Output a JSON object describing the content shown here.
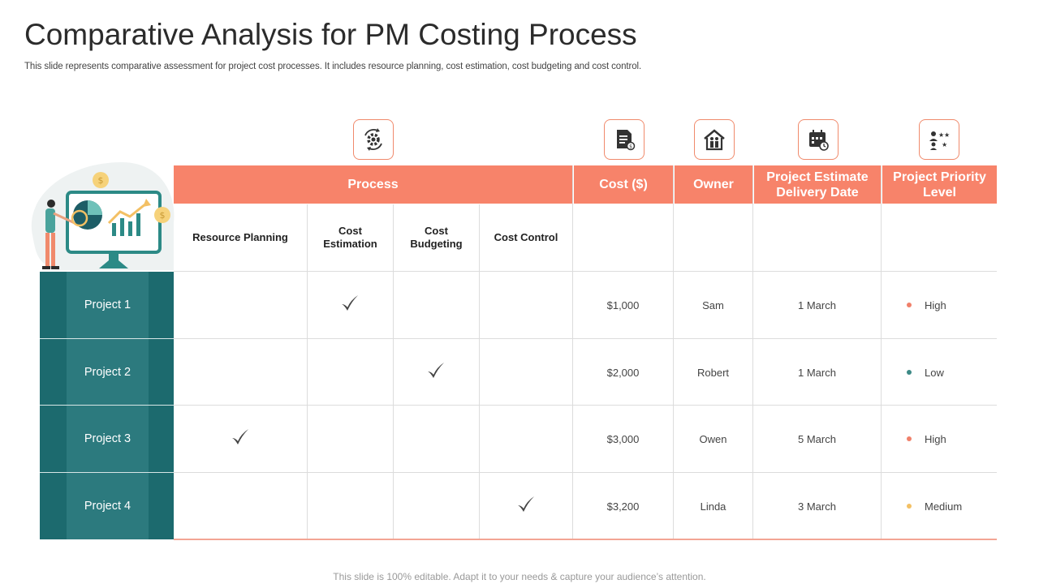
{
  "title": "Comparative Analysis for PM Costing Process",
  "subtitle": "This slide represents comparative assessment for project cost processes. It includes resource planning, cost estimation, cost budgeting and cost control.",
  "footer": "This slide is 100% editable. Adapt it to your needs & capture your audience’s attention.",
  "headers": {
    "process": "Process",
    "cost": "Cost ($)",
    "owner": "Owner",
    "delivery_line1": "Project Estimate",
    "delivery_line2": "Delivery Date",
    "priority_line1": "Project Priority",
    "priority_line2": "Level"
  },
  "process_columns": {
    "resource_planning": "Resource Planning",
    "cost_estimation_line1": "Cost",
    "cost_estimation_line2": "Estimation",
    "cost_budgeting_line1": "Cost",
    "cost_budgeting_line2": "Budgeting",
    "cost_control": "Cost Control"
  },
  "icons": [
    "gear-cycle-icon",
    "invoice-icon",
    "house-people-icon",
    "calendar-clock-icon",
    "user-stars-icon"
  ],
  "colors": {
    "header": "#f7836a",
    "project_dark": "#1c6a6e",
    "project_mid": "#2c7a7e",
    "high": "#f0806a",
    "low": "#3d8a86",
    "medium": "#f3c064"
  },
  "rows": [
    {
      "project": "Project 1",
      "process": "cost_estimation",
      "cost": "$1,000",
      "owner": "Sam",
      "delivery": "1 March",
      "priority": "High",
      "priority_color": "#f0806a"
    },
    {
      "project": "Project 2",
      "process": "cost_budgeting",
      "cost": "$2,000",
      "owner": "Robert",
      "delivery": "1 March",
      "priority": "Low",
      "priority_color": "#3d8a86"
    },
    {
      "project": "Project 3",
      "process": "resource_planning",
      "cost": "$3,000",
      "owner": "Owen",
      "delivery": "5 March",
      "priority": "High",
      "priority_color": "#f0806a"
    },
    {
      "project": "Project 4",
      "process": "cost_control",
      "cost": "$3,200",
      "owner": "Linda",
      "delivery": "3 March",
      "priority": "Medium",
      "priority_color": "#f3c064"
    }
  ]
}
